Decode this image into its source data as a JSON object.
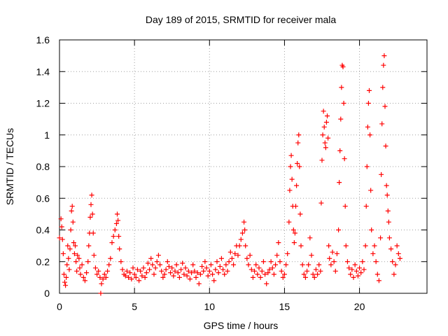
{
  "chart_data": {
    "type": "scatter",
    "title": "Day 189 of 2015, SRMTID for receiver mala",
    "xlabel": "GPS time / hours",
    "ylabel": "SRMTID / TECUs",
    "xlim": [
      0,
      24.5
    ],
    "ylim": [
      0,
      1.6
    ],
    "xticks": [
      0,
      5,
      10,
      15,
      20
    ],
    "xtick_labels": [
      "0",
      "5",
      "10",
      "15",
      "20"
    ],
    "yticks": [
      0,
      0.2,
      0.4,
      0.6,
      0.8,
      1.0,
      1.2,
      1.4,
      1.6
    ],
    "ytick_labels": [
      "0",
      "0.2",
      "0.4",
      "0.6",
      "0.8",
      "1",
      "1.2",
      "1.4",
      "1.6"
    ],
    "grid": true,
    "marker": "+",
    "color": "#ff0000",
    "series": [
      {
        "name": "SRMTID",
        "points": [
          [
            0.0,
            0.35
          ],
          [
            0.1,
            0.47
          ],
          [
            0.15,
            0.42
          ],
          [
            0.2,
            0.34
          ],
          [
            0.25,
            0.25
          ],
          [
            0.3,
            0.12
          ],
          [
            0.35,
            0.07
          ],
          [
            0.4,
            0.05
          ],
          [
            0.45,
            0.1
          ],
          [
            0.5,
            0.18
          ],
          [
            0.55,
            0.3
          ],
          [
            0.6,
            0.22
          ],
          [
            0.65,
            0.15
          ],
          [
            0.7,
            0.28
          ],
          [
            0.75,
            0.4
          ],
          [
            0.8,
            0.52
          ],
          [
            0.85,
            0.55
          ],
          [
            0.9,
            0.45
          ],
          [
            0.95,
            0.32
          ],
          [
            1.0,
            0.25
          ],
          [
            1.05,
            0.3
          ],
          [
            1.1,
            0.2
          ],
          [
            1.15,
            0.14
          ],
          [
            1.2,
            0.24
          ],
          [
            1.3,
            0.22
          ],
          [
            1.35,
            0.16
          ],
          [
            1.4,
            0.12
          ],
          [
            1.5,
            0.18
          ],
          [
            1.6,
            0.1
          ],
          [
            1.7,
            0.08
          ],
          [
            1.8,
            0.13
          ],
          [
            1.9,
            0.2
          ],
          [
            1.95,
            0.3
          ],
          [
            2.0,
            0.38
          ],
          [
            2.05,
            0.48
          ],
          [
            2.1,
            0.56
          ],
          [
            2.15,
            0.62
          ],
          [
            2.2,
            0.5
          ],
          [
            2.25,
            0.38
          ],
          [
            2.3,
            0.24
          ],
          [
            2.4,
            0.16
          ],
          [
            2.5,
            0.12
          ],
          [
            2.6,
            0.14
          ],
          [
            2.7,
            0.1
          ],
          [
            2.75,
            0.0
          ],
          [
            2.8,
            0.06
          ],
          [
            2.9,
            0.09
          ],
          [
            3.0,
            0.12
          ],
          [
            3.1,
            0.1
          ],
          [
            3.2,
            0.14
          ],
          [
            3.3,
            0.18
          ],
          [
            3.4,
            0.22
          ],
          [
            3.5,
            0.32
          ],
          [
            3.6,
            0.36
          ],
          [
            3.7,
            0.4
          ],
          [
            3.8,
            0.44
          ],
          [
            3.85,
            0.5
          ],
          [
            3.9,
            0.46
          ],
          [
            3.95,
            0.36
          ],
          [
            4.0,
            0.28
          ],
          [
            4.1,
            0.2
          ],
          [
            4.2,
            0.15
          ],
          [
            4.3,
            0.12
          ],
          [
            4.4,
            0.11
          ],
          [
            4.5,
            0.14
          ],
          [
            4.6,
            0.1
          ],
          [
            4.7,
            0.13
          ],
          [
            4.8,
            0.09
          ],
          [
            4.9,
            0.16
          ],
          [
            5.0,
            0.12
          ],
          [
            5.1,
            0.1
          ],
          [
            5.2,
            0.15
          ],
          [
            5.3,
            0.08
          ],
          [
            5.4,
            0.14
          ],
          [
            5.5,
            0.11
          ],
          [
            5.6,
            0.16
          ],
          [
            5.7,
            0.1
          ],
          [
            5.8,
            0.13
          ],
          [
            5.9,
            0.19
          ],
          [
            6.0,
            0.15
          ],
          [
            6.1,
            0.22
          ],
          [
            6.2,
            0.18
          ],
          [
            6.3,
            0.12
          ],
          [
            6.4,
            0.16
          ],
          [
            6.5,
            0.2
          ],
          [
            6.6,
            0.24
          ],
          [
            6.7,
            0.18
          ],
          [
            6.8,
            0.14
          ],
          [
            6.9,
            0.1
          ],
          [
            7.0,
            0.12
          ],
          [
            7.1,
            0.15
          ],
          [
            7.2,
            0.2
          ],
          [
            7.3,
            0.17
          ],
          [
            7.4,
            0.13
          ],
          [
            7.5,
            0.16
          ],
          [
            7.6,
            0.11
          ],
          [
            7.7,
            0.14
          ],
          [
            7.8,
            0.18
          ],
          [
            7.9,
            0.13
          ],
          [
            8.0,
            0.1
          ],
          [
            8.1,
            0.15
          ],
          [
            8.2,
            0.19
          ],
          [
            8.3,
            0.12
          ],
          [
            8.4,
            0.16
          ],
          [
            8.5,
            0.11
          ],
          [
            8.6,
            0.14
          ],
          [
            8.7,
            0.09
          ],
          [
            8.8,
            0.13
          ],
          [
            8.9,
            0.18
          ],
          [
            9.0,
            0.14
          ],
          [
            9.1,
            0.1
          ],
          [
            9.2,
            0.13
          ],
          [
            9.3,
            0.06
          ],
          [
            9.4,
            0.12
          ],
          [
            9.5,
            0.17
          ],
          [
            9.6,
            0.14
          ],
          [
            9.7,
            0.2
          ],
          [
            9.8,
            0.16
          ],
          [
            9.9,
            0.11
          ],
          [
            10.0,
            0.14
          ],
          [
            10.1,
            0.18
          ],
          [
            10.2,
            0.12
          ],
          [
            10.3,
            0.08
          ],
          [
            10.4,
            0.15
          ],
          [
            10.5,
            0.2
          ],
          [
            10.6,
            0.13
          ],
          [
            10.7,
            0.17
          ],
          [
            10.8,
            0.22
          ],
          [
            10.9,
            0.15
          ],
          [
            11.0,
            0.12
          ],
          [
            11.1,
            0.18
          ],
          [
            11.2,
            0.14
          ],
          [
            11.3,
            0.2
          ],
          [
            11.4,
            0.26
          ],
          [
            11.5,
            0.22
          ],
          [
            11.6,
            0.18
          ],
          [
            11.7,
            0.25
          ],
          [
            11.8,
            0.3
          ],
          [
            11.9,
            0.24
          ],
          [
            12.0,
            0.3
          ],
          [
            12.1,
            0.34
          ],
          [
            12.2,
            0.38
          ],
          [
            12.3,
            0.45
          ],
          [
            12.35,
            0.4
          ],
          [
            12.4,
            0.3
          ],
          [
            12.5,
            0.22
          ],
          [
            12.6,
            0.18
          ],
          [
            12.7,
            0.24
          ],
          [
            12.8,
            0.15
          ],
          [
            12.9,
            0.1
          ],
          [
            13.0,
            0.14
          ],
          [
            13.1,
            0.18
          ],
          [
            13.2,
            0.12
          ],
          [
            13.3,
            0.16
          ],
          [
            13.4,
            0.1
          ],
          [
            13.5,
            0.14
          ],
          [
            13.6,
            0.2
          ],
          [
            13.7,
            0.12
          ],
          [
            13.8,
            0.06
          ],
          [
            13.9,
            0.13
          ],
          [
            14.0,
            0.15
          ],
          [
            14.1,
            0.2
          ],
          [
            14.2,
            0.16
          ],
          [
            14.3,
            0.12
          ],
          [
            14.4,
            0.18
          ],
          [
            14.5,
            0.24
          ],
          [
            14.6,
            0.32
          ],
          [
            14.7,
            0.2
          ],
          [
            14.8,
            0.14
          ],
          [
            14.9,
            0.1
          ],
          [
            15.0,
            0.12
          ],
          [
            15.1,
            0.18
          ],
          [
            15.2,
            0.25
          ],
          [
            15.3,
            0.45
          ],
          [
            15.35,
            0.65
          ],
          [
            15.4,
            0.8
          ],
          [
            15.45,
            0.87
          ],
          [
            15.5,
            0.72
          ],
          [
            15.55,
            0.55
          ],
          [
            15.6,
            0.4
          ],
          [
            15.65,
            0.32
          ],
          [
            15.7,
            0.38
          ],
          [
            15.75,
            0.55
          ],
          [
            15.8,
            0.68
          ],
          [
            15.85,
            0.82
          ],
          [
            15.9,
            0.95
          ],
          [
            15.95,
            1.0
          ],
          [
            16.0,
            0.8
          ],
          [
            16.05,
            0.5
          ],
          [
            16.1,
            0.3
          ],
          [
            16.2,
            0.18
          ],
          [
            16.3,
            0.12
          ],
          [
            16.4,
            0.1
          ],
          [
            16.5,
            0.14
          ],
          [
            16.6,
            0.18
          ],
          [
            16.7,
            0.35
          ],
          [
            16.8,
            0.24
          ],
          [
            16.9,
            0.12
          ],
          [
            17.0,
            0.1
          ],
          [
            17.1,
            0.15
          ],
          [
            17.2,
            0.12
          ],
          [
            17.3,
            0.18
          ],
          [
            17.4,
            0.14
          ],
          [
            17.45,
            0.57
          ],
          [
            17.5,
            0.84
          ],
          [
            17.55,
            1.0
          ],
          [
            17.6,
            1.15
          ],
          [
            17.65,
            1.05
          ],
          [
            17.7,
            0.95
          ],
          [
            17.75,
            0.92
          ],
          [
            17.8,
            1.08
          ],
          [
            17.85,
            1.12
          ],
          [
            17.9,
            0.98
          ],
          [
            17.95,
            0.3
          ],
          [
            18.0,
            0.22
          ],
          [
            18.1,
            0.18
          ],
          [
            18.2,
            0.26
          ],
          [
            18.3,
            0.2
          ],
          [
            18.4,
            0.14
          ],
          [
            18.5,
            0.25
          ],
          [
            18.6,
            0.4
          ],
          [
            18.65,
            0.7
          ],
          [
            18.7,
            0.9
          ],
          [
            18.75,
            1.1
          ],
          [
            18.8,
            1.3
          ],
          [
            18.85,
            1.44
          ],
          [
            18.9,
            1.43
          ],
          [
            18.95,
            1.2
          ],
          [
            19.0,
            0.85
          ],
          [
            19.05,
            0.55
          ],
          [
            19.1,
            0.3
          ],
          [
            19.2,
            0.2
          ],
          [
            19.3,
            0.16
          ],
          [
            19.4,
            0.12
          ],
          [
            19.5,
            0.15
          ],
          [
            19.6,
            0.1
          ],
          [
            19.7,
            0.18
          ],
          [
            19.8,
            0.14
          ],
          [
            19.9,
            0.11
          ],
          [
            20.0,
            0.16
          ],
          [
            20.1,
            0.13
          ],
          [
            20.2,
            0.2
          ],
          [
            20.3,
            0.15
          ],
          [
            20.4,
            0.3
          ],
          [
            20.45,
            0.55
          ],
          [
            20.5,
            0.8
          ],
          [
            20.55,
            1.05
          ],
          [
            20.6,
            1.2
          ],
          [
            20.65,
            1.28
          ],
          [
            20.7,
            1.0
          ],
          [
            20.75,
            0.65
          ],
          [
            20.8,
            0.4
          ],
          [
            20.9,
            0.25
          ],
          [
            21.0,
            0.3
          ],
          [
            21.1,
            0.2
          ],
          [
            21.2,
            0.12
          ],
          [
            21.3,
            0.08
          ],
          [
            21.4,
            0.35
          ],
          [
            21.45,
            0.75
          ],
          [
            21.5,
            1.07
          ],
          [
            21.55,
            1.3
          ],
          [
            21.6,
            1.44
          ],
          [
            21.65,
            1.5
          ],
          [
            21.7,
            1.18
          ],
          [
            21.75,
            0.93
          ],
          [
            21.8,
            0.68
          ],
          [
            21.85,
            0.62
          ],
          [
            21.9,
            0.52
          ],
          [
            21.95,
            0.45
          ],
          [
            22.0,
            0.35
          ],
          [
            22.1,
            0.28
          ],
          [
            22.2,
            0.2
          ],
          [
            22.3,
            0.12
          ],
          [
            22.4,
            0.18
          ],
          [
            22.5,
            0.3
          ],
          [
            22.6,
            0.25
          ],
          [
            22.7,
            0.22
          ]
        ]
      }
    ]
  }
}
